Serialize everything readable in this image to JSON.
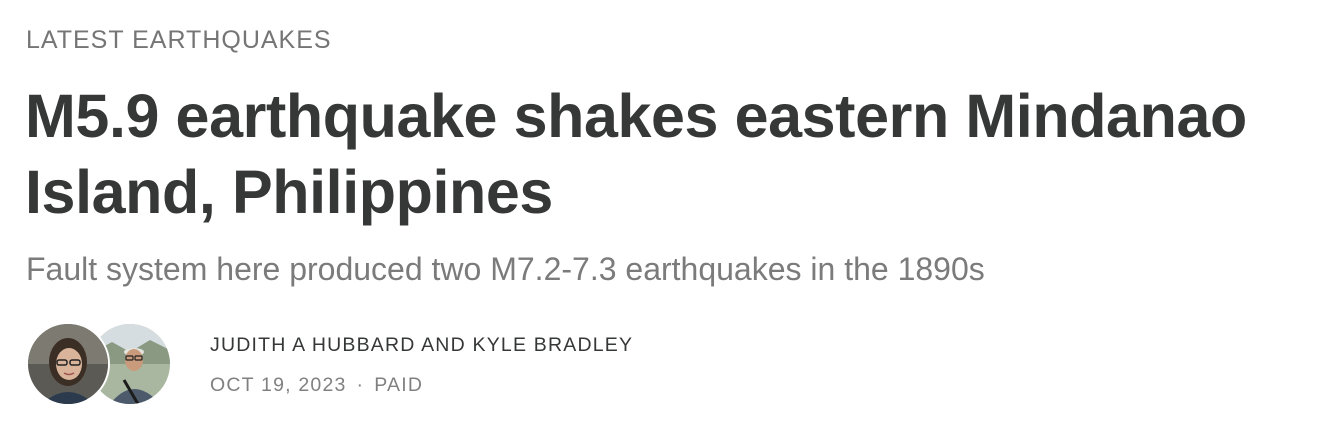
{
  "section": {
    "label": "LATEST EARTHQUAKES"
  },
  "post": {
    "title": "M5.9 earthquake shakes eastern Mindanao Island, Philippines",
    "subtitle": "Fault system here produced two M7.2-7.3 earthquakes in the 1890s"
  },
  "byline": {
    "authors": "JUDITH A HUBBARD AND KYLE BRADLEY",
    "date": "OCT 19, 2023",
    "separator": "·",
    "access": "PAID"
  }
}
